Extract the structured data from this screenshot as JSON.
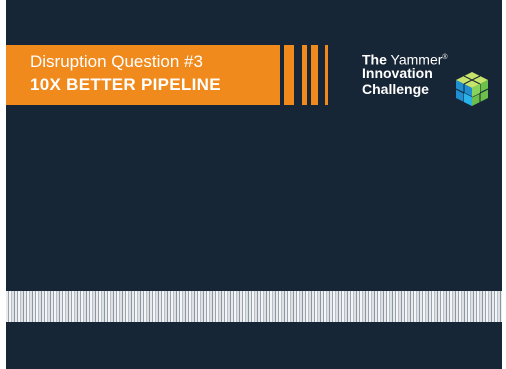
{
  "banner": {
    "line1": "Disruption Question #3",
    "line2": "10X BETTER PIPELINE"
  },
  "brand": {
    "the": "The",
    "yammer": "Yammer",
    "registered": "®",
    "innovation": "Innovation",
    "challenge": "Challenge",
    "logo_icon": "cube-icon"
  },
  "colors": {
    "background": "#172636",
    "accent": "#f08a1c",
    "text": "#ffffff"
  }
}
